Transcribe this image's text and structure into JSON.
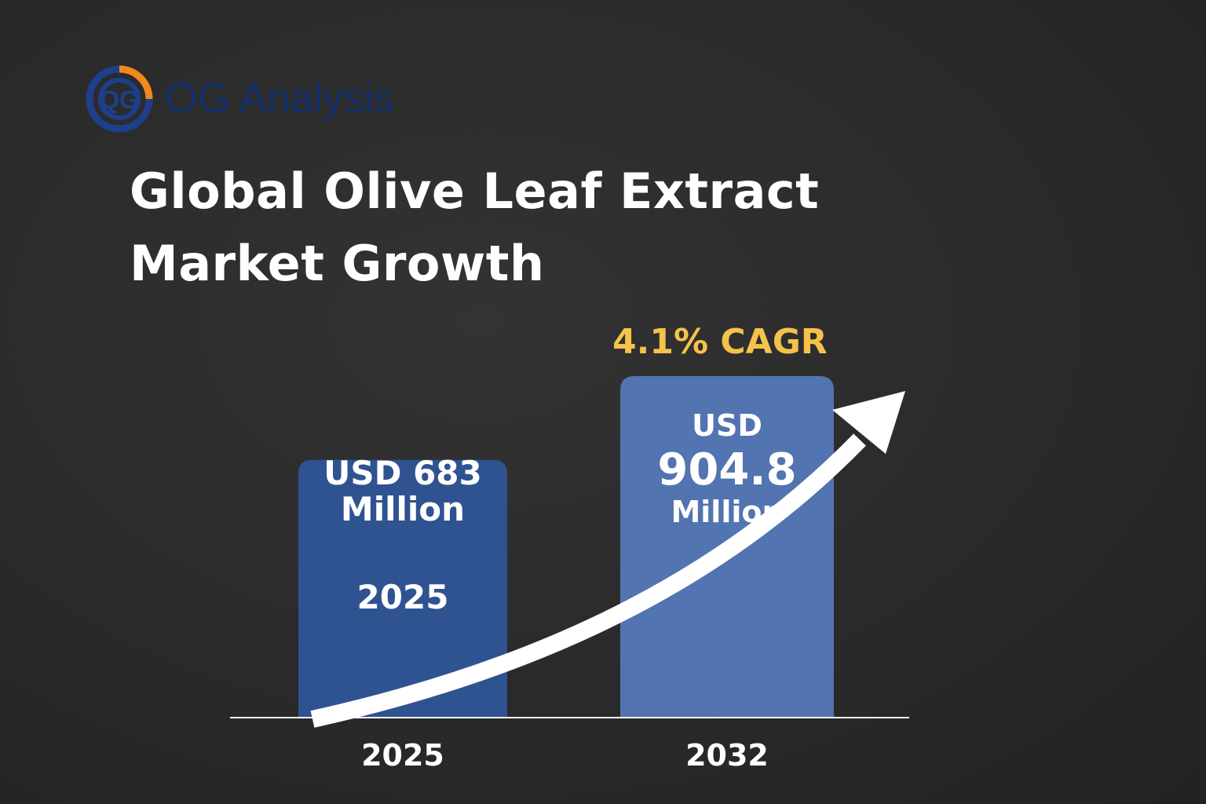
{
  "brand": {
    "name": "OG Analysis",
    "mark": "QG"
  },
  "chart_data": {
    "type": "bar",
    "title": "Global Olive Leaf Extract Market Growth",
    "title_lines": [
      "Global Olive Leaf Extract",
      "Market Growth"
    ],
    "categories": [
      "2025",
      "2032"
    ],
    "values": [
      683,
      904.8
    ],
    "unit": "USD Million",
    "value_labels": [
      {
        "currency": "USD",
        "value": "683",
        "unit": "Million",
        "text": "USD 683 Million"
      },
      {
        "currency": "USD",
        "value": "904.8",
        "unit": "Million",
        "text": "USD 904.8 Million"
      }
    ],
    "bar_inner_label": "2025",
    "annotation": "4.1% CAGR",
    "trend_arrow": "up",
    "colors": {
      "bar_2025": "#2f5291",
      "bar_2032": "#5274b0",
      "annotation": "#f5c24b",
      "text": "#ffffff",
      "background": "#2b2b2b"
    }
  }
}
